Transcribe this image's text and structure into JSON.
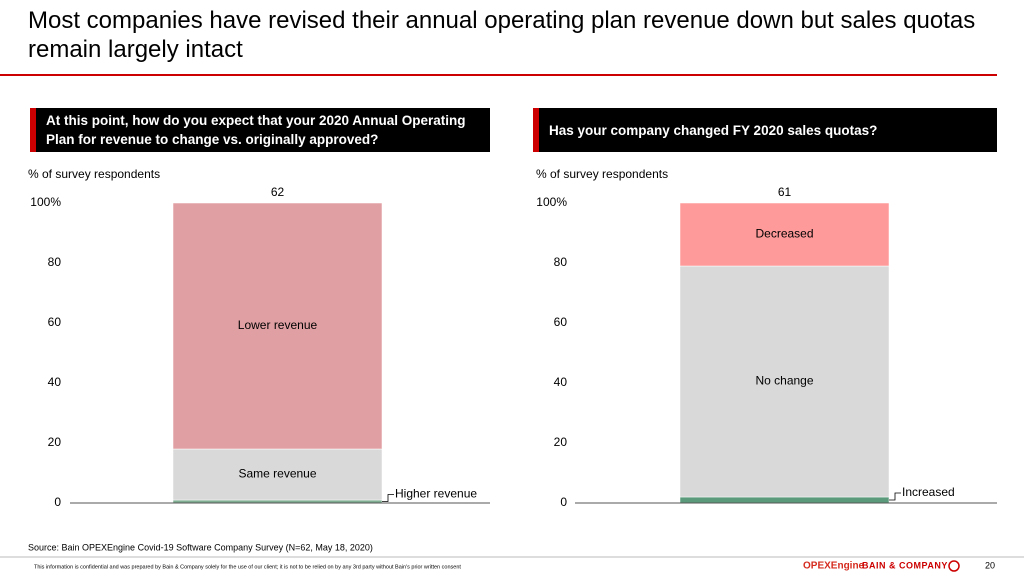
{
  "title": "Most companies have revised their annual operating plan revenue down but sales quotas remain largely intact",
  "chart_data": [
    {
      "type": "stacked-bar",
      "question": "At this point, how do you expect that your 2020 Annual Operating Plan for revenue to change vs. originally approved?",
      "y_label": "% of survey respondents",
      "bar_total": 62,
      "ylim": [
        0,
        100
      ],
      "yticks": [
        0,
        20,
        40,
        60,
        80,
        {
          "value": 100,
          "label": "100%"
        }
      ],
      "series": [
        {
          "name": "Higher revenue",
          "color": "#7fae92",
          "values": [
            1
          ]
        },
        {
          "name": "Same revenue",
          "color": "#d9d9d9",
          "values": [
            17
          ]
        },
        {
          "name": "Lower revenue",
          "color": "#e0a0a3",
          "values": [
            82
          ]
        }
      ]
    },
    {
      "type": "stacked-bar",
      "question": "Has your company changed FY 2020 sales quotas?",
      "y_label": "% of survey respondents",
      "bar_total": 61,
      "ylim": [
        0,
        100
      ],
      "yticks": [
        0,
        20,
        40,
        60,
        80,
        {
          "value": 100,
          "label": "100%"
        }
      ],
      "series": [
        {
          "name": "Increased",
          "color": "#5b9b7b",
          "values": [
            2
          ]
        },
        {
          "name": "No change",
          "color": "#d9d9d9",
          "values": [
            77
          ]
        },
        {
          "name": "Decreased",
          "color": "#ff9a9a",
          "values": [
            21
          ]
        }
      ]
    }
  ],
  "source": "Source: Bain OPEXEngine Covid-19 Software Company Survey (N=62, May 18, 2020)",
  "footer_note": "This information is confidential and was prepared by Bain & Company solely for the use of our client; it is not to be relied on by any 3rd party without Bain's prior written consent",
  "brand_product": "OPEXEngine",
  "brand_company": "BAIN & COMPANY",
  "page_number": 20
}
